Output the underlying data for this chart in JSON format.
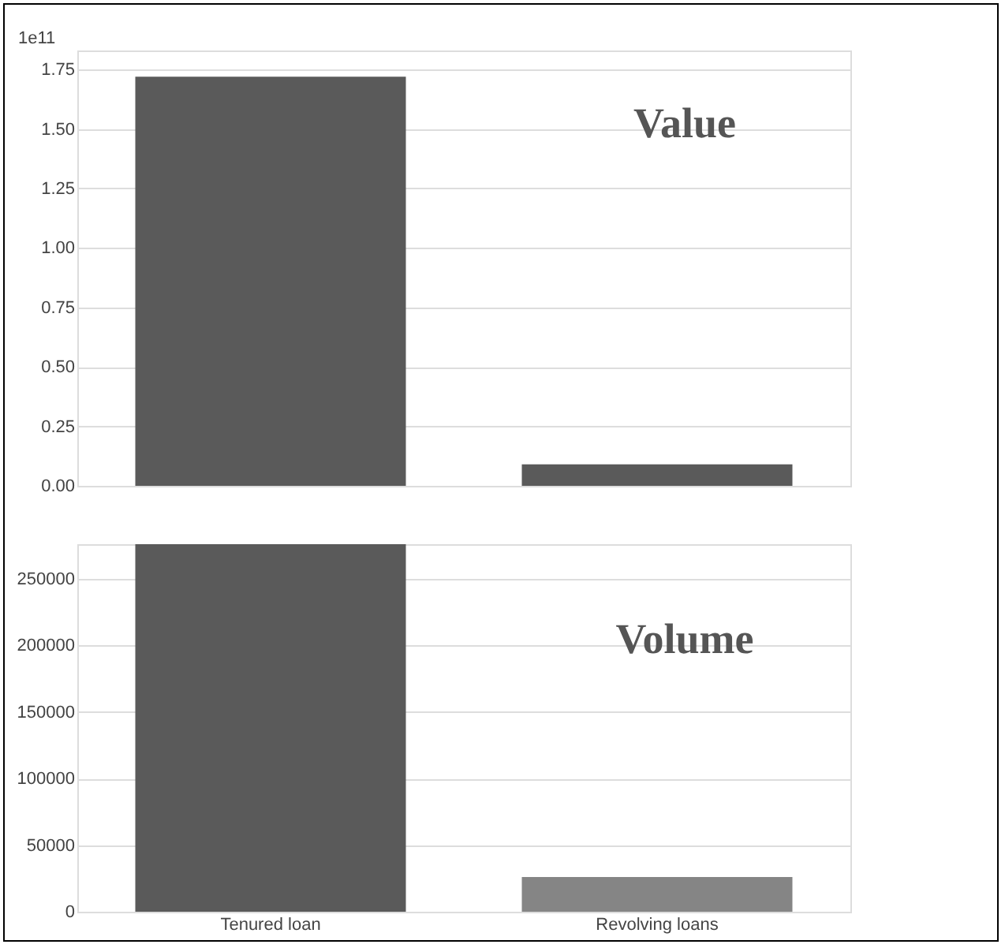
{
  "chart_data": [
    {
      "type": "bar",
      "title": "Value",
      "ylabel": "1e11",
      "categories": [
        null,
        null
      ],
      "values": [
        1.72,
        0.09
      ],
      "colors": [
        "#5a5a5a",
        "#5a5a5a"
      ],
      "ylim": [
        0,
        1.83
      ],
      "yticks": [
        {
          "value": 0,
          "label": "0.00"
        },
        0.25,
        {
          "value": 0.5,
          "label": "0.50"
        },
        0.75,
        {
          "value": 1,
          "label": "1.00"
        },
        1.25,
        {
          "value": 1.5,
          "label": "1.50"
        },
        1.75
      ],
      "grid": "y",
      "tick_labels": "y"
    },
    {
      "type": "bar",
      "title": "Volume",
      "categories": [
        "Tenured loan",
        "Revolving loans"
      ],
      "values": [
        276000,
        26000
      ],
      "colors": [
        "#5a5a5a",
        "#858585"
      ],
      "ylim": [
        0,
        276000
      ],
      "yticks": [
        0,
        50000,
        100000,
        150000,
        200000,
        250000
      ],
      "grid": "y"
    }
  ]
}
